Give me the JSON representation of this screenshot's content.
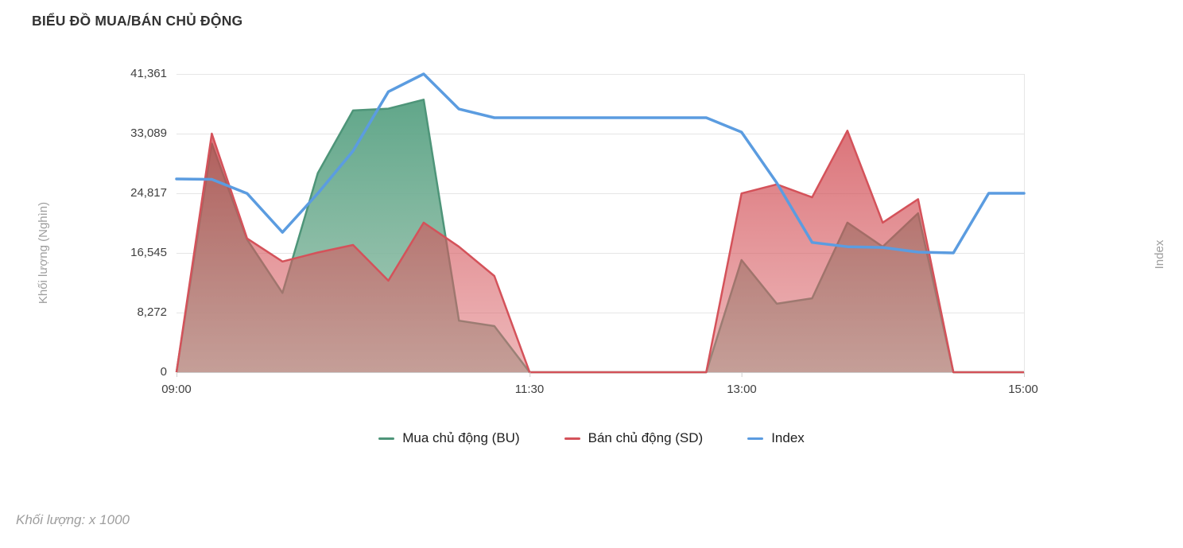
{
  "footer": {
    "text": "Khối lượng: x 1000"
  },
  "chart_data": {
    "type": "area",
    "title": "BIỂU ĐỒ MUA/BÁN CHỦ ĐỘNG",
    "ylabel": "Khối lượng (Nghìn)",
    "y2label": "Index",
    "xlabel": "",
    "ylim": [
      0,
      41361
    ],
    "grid": "horizontal only",
    "legend_position": "bottom center",
    "ytick_labels": [
      "41,361",
      "33,089",
      "24,817",
      "16,545",
      "8,272",
      "0"
    ],
    "ytick_values": [
      41361,
      33089,
      24817,
      16545,
      8272,
      0
    ],
    "xtick_labels": [
      "09:00",
      "11:30",
      "13:00",
      "15:00"
    ],
    "x": [
      "09:00",
      "09:15",
      "09:30",
      "09:45",
      "10:00",
      "10:15",
      "10:30",
      "10:45",
      "11:00",
      "11:15",
      "11:30",
      "11:45",
      "12:00",
      "12:15",
      "12:30",
      "12:45",
      "13:00",
      "13:15",
      "13:30",
      "13:45",
      "14:00",
      "14:15",
      "14:30",
      "14:45",
      "15:00"
    ],
    "series": [
      {
        "name": "Mua chủ động (BU)",
        "type": "area",
        "color": "#4e9579",
        "values": [
          0,
          31700,
          18400,
          11000,
          27600,
          36300,
          36550,
          37800,
          7150,
          6400,
          0,
          0,
          0,
          0,
          0,
          0,
          15550,
          9500,
          10250,
          20750,
          17400,
          22050,
          0,
          0,
          0
        ]
      },
      {
        "name": "Bán chủ động (SD)",
        "type": "area",
        "color": "#d4525a",
        "values": [
          0,
          33089,
          18550,
          15350,
          16600,
          17650,
          12700,
          20750,
          17400,
          13350,
          0,
          0,
          0,
          0,
          0,
          0,
          24800,
          26050,
          24250,
          33500,
          20750,
          24000,
          0,
          0,
          0
        ]
      },
      {
        "name": "Index",
        "type": "line",
        "color": "#5b9ce0",
        "axis_note": "plotted on unlabeled right axis; values given as left-axis visual equivalents",
        "values": [
          26800,
          26750,
          24800,
          19400,
          24800,
          30700,
          38900,
          41361,
          36500,
          35300,
          35300,
          35300,
          35300,
          35300,
          35300,
          35300,
          33300,
          26250,
          18000,
          17400,
          17300,
          16650,
          16545,
          24817,
          24817
        ]
      }
    ]
  }
}
